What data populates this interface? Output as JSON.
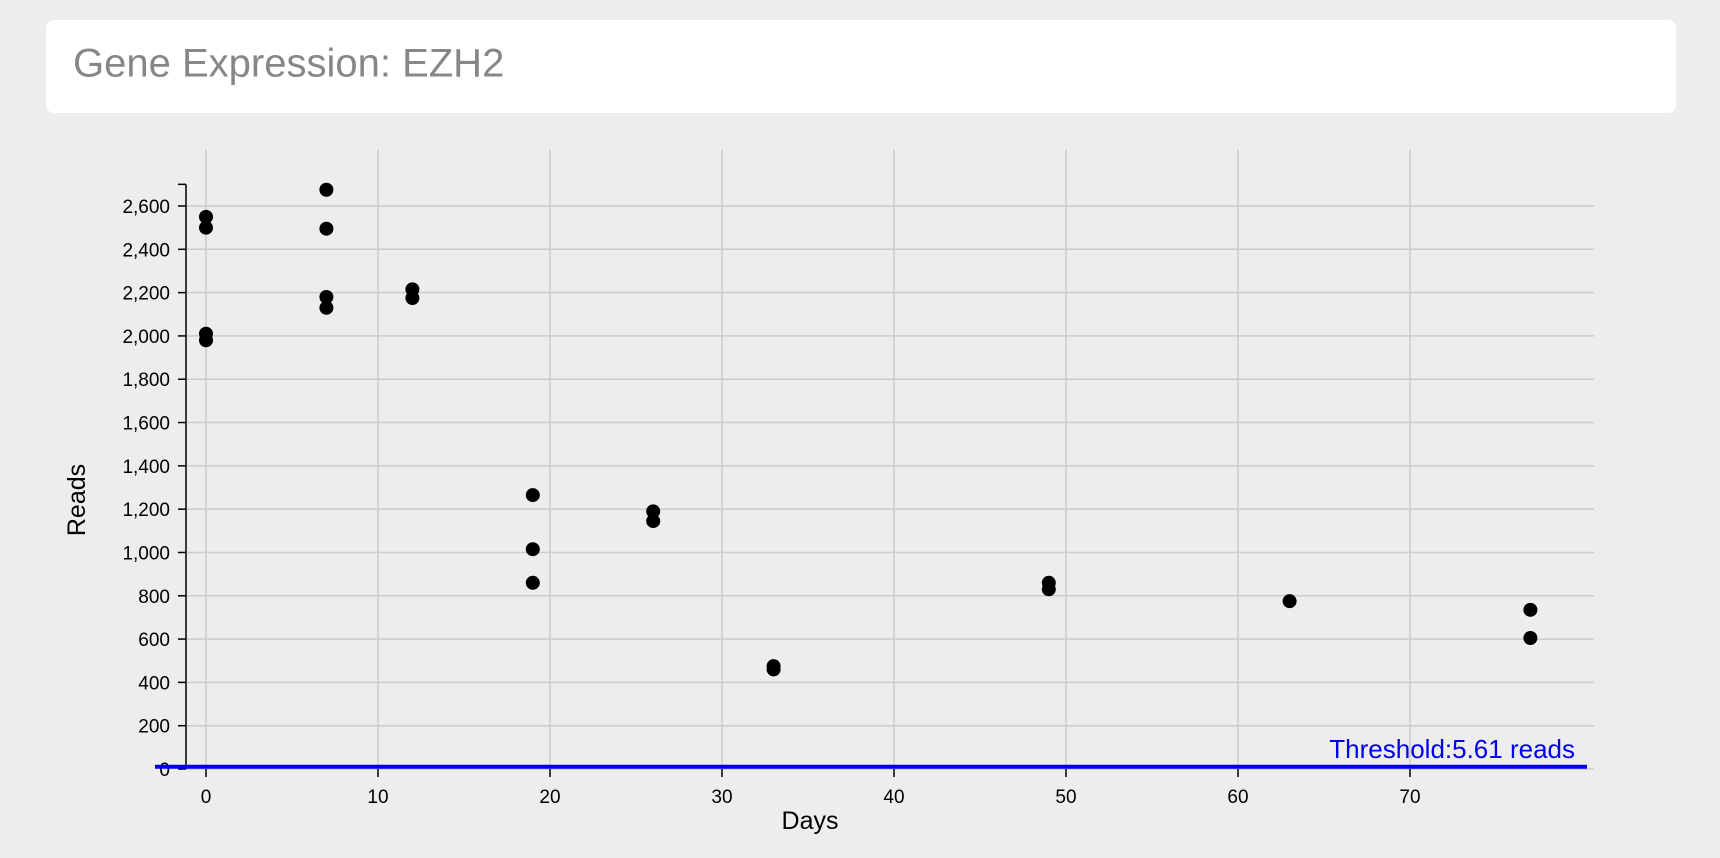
{
  "page": {
    "title": "Gene Expression: EZH2"
  },
  "colors": {
    "background": "#ededed",
    "card": "#ffffff",
    "title_text": "#878787",
    "grid": "#cccccc",
    "point": "#000000",
    "threshold": "#0000ee"
  },
  "chart_data": {
    "type": "scatter",
    "title": "",
    "xlabel": "Days",
    "ylabel": "Reads",
    "xlim": [
      -1.5,
      80
    ],
    "ylim": [
      0,
      2700
    ],
    "x_ticks": [
      0,
      10,
      20,
      30,
      40,
      50,
      60,
      70
    ],
    "y_ticks": [
      0,
      200,
      400,
      600,
      800,
      1000,
      1200,
      1400,
      1600,
      1800,
      2000,
      2200,
      2400,
      2600
    ],
    "y_tick_labels": [
      "0",
      "200",
      "400",
      "600",
      "800",
      "1,000",
      "1,200",
      "1,400",
      "1,600",
      "1,800",
      "2,000",
      "2,200",
      "2,400",
      "2,600"
    ],
    "grid": true,
    "points": [
      {
        "x": 0,
        "y": 2550
      },
      {
        "x": 0,
        "y": 2500
      },
      {
        "x": 0,
        "y": 2010
      },
      {
        "x": 0,
        "y": 1980
      },
      {
        "x": 7,
        "y": 2675
      },
      {
        "x": 7,
        "y": 2495
      },
      {
        "x": 7,
        "y": 2180
      },
      {
        "x": 7,
        "y": 2130
      },
      {
        "x": 12,
        "y": 2215
      },
      {
        "x": 12,
        "y": 2175
      },
      {
        "x": 19,
        "y": 1265
      },
      {
        "x": 19,
        "y": 1015
      },
      {
        "x": 19,
        "y": 860
      },
      {
        "x": 26,
        "y": 1190
      },
      {
        "x": 26,
        "y": 1145
      },
      {
        "x": 33,
        "y": 475
      },
      {
        "x": 33,
        "y": 460
      },
      {
        "x": 49,
        "y": 860
      },
      {
        "x": 49,
        "y": 830
      },
      {
        "x": 63,
        "y": 775
      },
      {
        "x": 77,
        "y": 735
      },
      {
        "x": 77,
        "y": 605
      }
    ],
    "threshold": {
      "value": 5.61,
      "label": "Threshold:5.61 reads"
    }
  }
}
